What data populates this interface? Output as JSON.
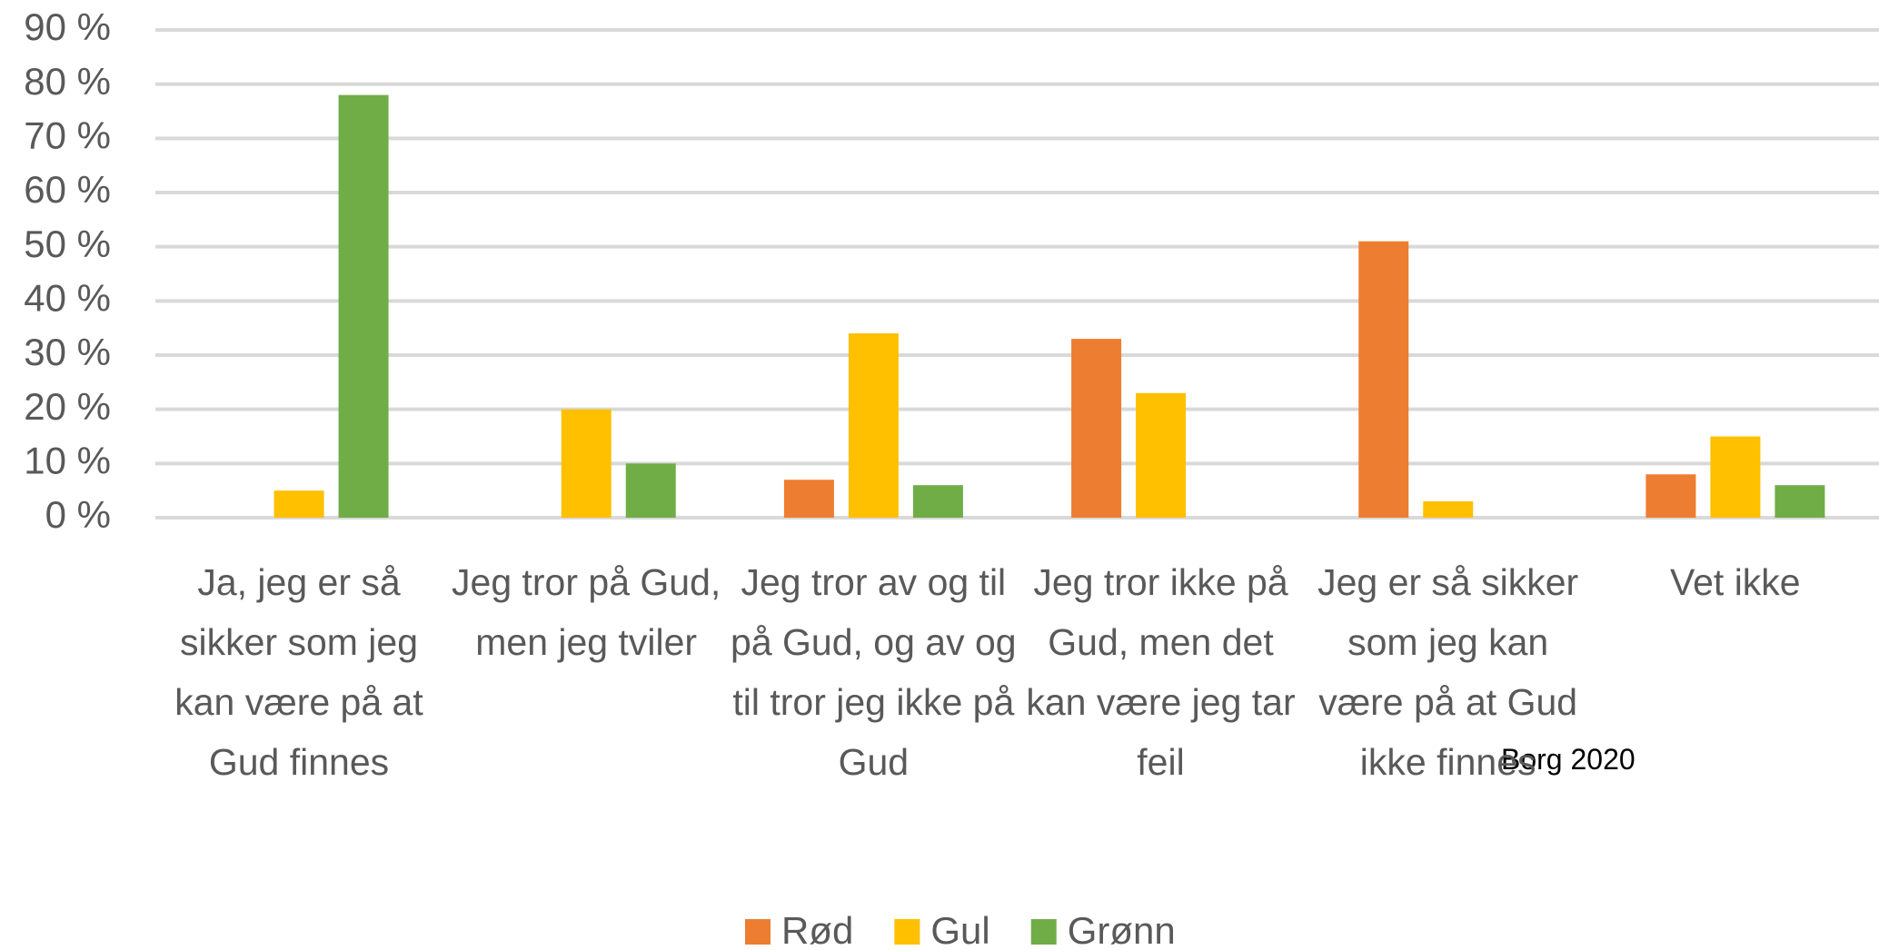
{
  "chart_data": {
    "type": "bar",
    "categories": [
      "Ja, jeg er så sikker som jeg kan være på at Gud finnes",
      "Jeg tror på Gud, men jeg tviler",
      "Jeg tror av og til på Gud, og av og til tror jeg ikke på Gud",
      "Jeg tror ikke på Gud, men det kan være jeg tar feil",
      "Jeg er så sikker som jeg kan være på at Gud ikke finnes",
      "Vet ikke"
    ],
    "series": [
      {
        "name": "Rød",
        "color": "#ed7d31",
        "values": [
          0,
          0,
          7,
          33,
          51,
          8
        ]
      },
      {
        "name": "Gul",
        "color": "#ffc000",
        "values": [
          5,
          20,
          34,
          23,
          3,
          15
        ]
      },
      {
        "name": "Grønn",
        "color": "#70ad47",
        "values": [
          78,
          10,
          6,
          0,
          0,
          6
        ]
      }
    ],
    "ylim": [
      0,
      90
    ],
    "yticks": [
      {
        "value": 0,
        "label": "0 %"
      },
      {
        "value": 10,
        "label": "10 %"
      },
      {
        "value": 20,
        "label": "20 %"
      },
      {
        "value": 30,
        "label": "30 %"
      },
      {
        "value": 40,
        "label": "40 %"
      },
      {
        "value": 50,
        "label": "50 %"
      },
      {
        "value": 60,
        "label": "60 %"
      },
      {
        "value": 70,
        "label": "70 %"
      },
      {
        "value": 80,
        "label": "80 %"
      },
      {
        "value": 90,
        "label": "90 %"
      }
    ],
    "grid": true,
    "legend": "bottom",
    "annotation": "Borg 2020"
  }
}
